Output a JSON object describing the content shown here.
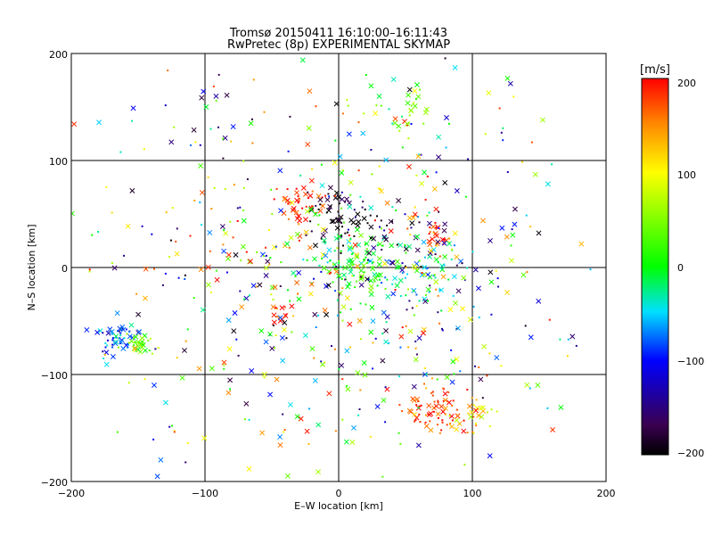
{
  "chart_data": {
    "type": "scatter",
    "title_line1": "Tromsø 20150411 16:10:00–16:11:43",
    "title_line2": "RwPretec (8p) EXPERIMENTAL SKYMAP",
    "xlabel": "E–W location [km]",
    "ylabel": "N–S location [km]",
    "xlim": [
      -200,
      200
    ],
    "ylim": [
      -200,
      200
    ],
    "xticks": [
      "−200",
      "−100",
      "0",
      "100",
      "200"
    ],
    "yticks": [
      "200",
      "100",
      "0",
      "−100",
      "−200"
    ],
    "grid": true,
    "colorbar": {
      "unit": "[m/s]",
      "min": -200,
      "max": 200,
      "ticks": [
        "200",
        "100",
        "0",
        "−100",
        "−200"
      ],
      "colormap": "rainbow: black, purple, blue, cyan, green, yellow, red"
    },
    "marker_types": [
      "cross",
      "dot"
    ],
    "clusters": [
      {
        "x": -167,
        "y": -69,
        "velocity": -80,
        "spread": 8,
        "count": 55
      },
      {
        "x": -150,
        "y": -70,
        "velocity": 40,
        "spread": 5,
        "count": 30
      },
      {
        "x": 75,
        "y": -135,
        "velocity": 180,
        "spread": 12,
        "count": 70
      },
      {
        "x": 100,
        "y": -138,
        "velocity": 110,
        "spread": 8,
        "count": 25
      },
      {
        "x": 50,
        "y": 148,
        "velocity": 30,
        "spread": 10,
        "count": 30
      },
      {
        "x": -28,
        "y": 62,
        "velocity": 190,
        "spread": 10,
        "count": 40
      },
      {
        "x": 0,
        "y": 48,
        "velocity": -200,
        "spread": 12,
        "count": 55
      },
      {
        "x": 15,
        "y": 0,
        "velocity": 0,
        "spread": 15,
        "count": 110
      },
      {
        "x": 65,
        "y": -5,
        "velocity": -40,
        "spread": 15,
        "count": 45
      },
      {
        "x": 75,
        "y": 30,
        "velocity": 185,
        "spread": 6,
        "count": 20
      },
      {
        "x": -42,
        "y": -42,
        "velocity": 175,
        "spread": 5,
        "count": 15
      },
      {
        "x": 45,
        "y": 25,
        "velocity": -170,
        "spread": 20,
        "count": 30
      },
      {
        "x": 0,
        "y": 0,
        "velocity": 0,
        "spread": 95,
        "count": 650
      }
    ]
  }
}
